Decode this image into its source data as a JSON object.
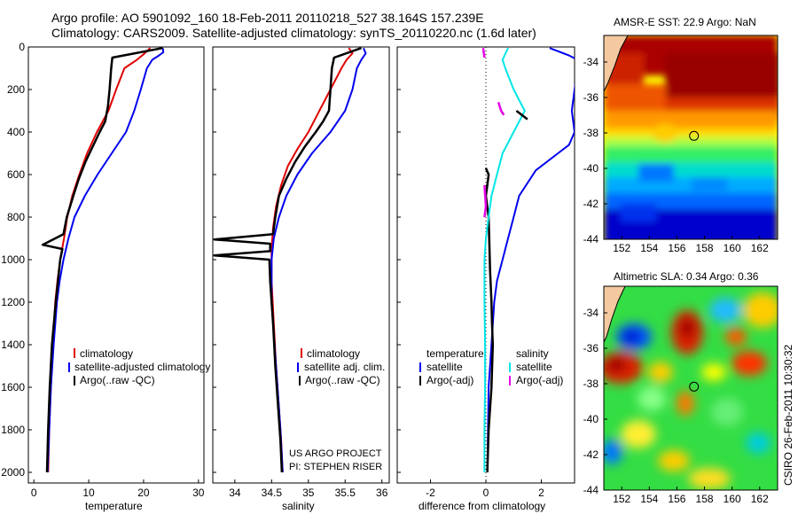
{
  "header": {
    "line1": "Argo profile: AO 5901092_160 18-Feb-2011 20110218_527 38.164S 157.239E",
    "line2": "Climatology: CARS2009. Satellite-adjusted climatology: synTS_20110220.nc (1.6d later)"
  },
  "colors": {
    "red": "#e00000",
    "blue": "#0000ee",
    "black": "#000000",
    "cyan": "#00e6e6",
    "magenta": "#e600e6"
  },
  "chart_data": [
    {
      "type": "line",
      "id": "temperature",
      "xlabel": "temperature",
      "xlim": [
        -1,
        31
      ],
      "ylim": [
        0,
        2050
      ],
      "xticks": [
        0,
        10,
        20,
        30
      ],
      "yticks": [
        0,
        200,
        400,
        600,
        800,
        1000,
        1200,
        1400,
        1600,
        1800,
        2000
      ],
      "ytick_labels": [
        "0",
        "200",
        "400",
        "600",
        "800",
        "1000",
        "1200",
        "1400",
        "1600",
        "1800",
        "2000"
      ],
      "legend": [
        "climatology",
        "satellite-adjusted climatology",
        "Argo(..raw -QC)"
      ],
      "series": [
        {
          "name": "climatology",
          "color": "red",
          "points": [
            [
              21.2,
              5
            ],
            [
              20.2,
              30
            ],
            [
              18.8,
              60
            ],
            [
              16.5,
              100
            ],
            [
              15.0,
              200
            ],
            [
              13.6,
              300
            ],
            [
              11.5,
              400
            ],
            [
              9.7,
              500
            ],
            [
              8.3,
              600
            ],
            [
              7.0,
              700
            ],
            [
              6.1,
              800
            ],
            [
              5.5,
              900
            ],
            [
              4.8,
              1000
            ],
            [
              4.3,
              1100
            ],
            [
              3.9,
              1200
            ],
            [
              3.5,
              1400
            ],
            [
              3.1,
              1600
            ],
            [
              2.8,
              1800
            ],
            [
              2.6,
              2000
            ]
          ]
        },
        {
          "name": "satellite-adjusted climatology",
          "color": "blue",
          "points": [
            [
              23.5,
              5
            ],
            [
              23.6,
              25
            ],
            [
              22.8,
              40
            ],
            [
              21.6,
              60
            ],
            [
              20.6,
              100
            ],
            [
              19.5,
              200
            ],
            [
              18.3,
              300
            ],
            [
              16.8,
              400
            ],
            [
              14.2,
              500
            ],
            [
              11.6,
              600
            ],
            [
              9.3,
              700
            ],
            [
              7.4,
              800
            ],
            [
              6.3,
              900
            ],
            [
              5.4,
              1000
            ],
            [
              4.7,
              1100
            ],
            [
              4.2,
              1200
            ],
            [
              3.6,
              1400
            ],
            [
              3.1,
              1600
            ],
            [
              2.8,
              1800
            ],
            [
              2.5,
              2000
            ]
          ]
        },
        {
          "name": "Argo",
          "color": "black",
          "points": [
            [
              23.5,
              5
            ],
            [
              14.3,
              50
            ],
            [
              14.1,
              100
            ],
            [
              13.8,
              200
            ],
            [
              13.5,
              280
            ],
            [
              13.0,
              350
            ],
            [
              12.0,
              400
            ],
            [
              10.5,
              480
            ],
            [
              9.4,
              540
            ],
            [
              8.2,
              620
            ],
            [
              7.2,
              700
            ],
            [
              6.0,
              800
            ],
            [
              5.4,
              880
            ],
            [
              1.6,
              930
            ],
            [
              5.2,
              950
            ],
            [
              4.8,
              1000
            ],
            [
              4.0,
              1200
            ],
            [
              3.3,
              1400
            ],
            [
              2.9,
              1600
            ],
            [
              2.6,
              1800
            ],
            [
              2.4,
              2000
            ]
          ]
        }
      ]
    },
    {
      "type": "line",
      "id": "salinity",
      "xlabel": "salinity",
      "xlim": [
        33.7,
        36.1
      ],
      "ylim": [
        0,
        2050
      ],
      "xticks": [
        34,
        34.5,
        35,
        35.5,
        36
      ],
      "xtick_labels": [
        "34",
        "34.5",
        "35",
        "35.5",
        "36"
      ],
      "legend": [
        "climatology",
        "satellite adj. clim.",
        "Argo(..raw -QC)"
      ],
      "notes": [
        "US ARGO PROJECT",
        "PI: STEPHEN RISER"
      ],
      "series": [
        {
          "name": "climatology",
          "color": "red",
          "points": [
            [
              35.55,
              5
            ],
            [
              35.6,
              30
            ],
            [
              35.52,
              60
            ],
            [
              35.45,
              100
            ],
            [
              35.3,
              200
            ],
            [
              35.15,
              300
            ],
            [
              35.0,
              400
            ],
            [
              34.85,
              480
            ],
            [
              34.72,
              560
            ],
            [
              34.63,
              650
            ],
            [
              34.56,
              750
            ],
            [
              34.52,
              850
            ],
            [
              34.5,
              950
            ],
            [
              34.5,
              1100
            ],
            [
              34.53,
              1300
            ],
            [
              34.56,
              1500
            ],
            [
              34.6,
              1700
            ],
            [
              34.63,
              1850
            ],
            [
              34.65,
              2000
            ]
          ]
        },
        {
          "name": "satellite adj. clim.",
          "color": "blue",
          "points": [
            [
              35.75,
              5
            ],
            [
              35.78,
              30
            ],
            [
              35.72,
              60
            ],
            [
              35.66,
              100
            ],
            [
              35.6,
              200
            ],
            [
              35.5,
              300
            ],
            [
              35.3,
              400
            ],
            [
              35.05,
              500
            ],
            [
              34.85,
              600
            ],
            [
              34.7,
              700
            ],
            [
              34.6,
              800
            ],
            [
              34.53,
              900
            ],
            [
              34.5,
              1000
            ],
            [
              34.5,
              1200
            ],
            [
              34.54,
              1400
            ],
            [
              34.58,
              1600
            ],
            [
              34.62,
              1800
            ],
            [
              34.65,
              2000
            ]
          ]
        },
        {
          "name": "Argo",
          "color": "black",
          "points": [
            [
              35.72,
              5
            ],
            [
              35.35,
              50
            ],
            [
              35.32,
              100
            ],
            [
              35.3,
              200
            ],
            [
              35.28,
              300
            ],
            [
              35.2,
              350
            ],
            [
              35.1,
              400
            ],
            [
              34.95,
              470
            ],
            [
              34.82,
              540
            ],
            [
              34.7,
              620
            ],
            [
              34.6,
              700
            ],
            [
              34.55,
              800
            ],
            [
              34.52,
              880
            ],
            [
              33.72,
              905
            ],
            [
              34.48,
              925
            ],
            [
              34.48,
              960
            ],
            [
              33.72,
              980
            ],
            [
              34.47,
              1000
            ],
            [
              34.48,
              1100
            ],
            [
              34.52,
              1300
            ],
            [
              34.55,
              1500
            ],
            [
              34.59,
              1700
            ],
            [
              34.62,
              1850
            ],
            [
              34.64,
              2000
            ]
          ]
        }
      ]
    },
    {
      "type": "line",
      "id": "difference",
      "xlabel": "difference from climatology",
      "xlim": [
        -3.2,
        3.2
      ],
      "ylim": [
        0,
        2050
      ],
      "xticks": [
        -2,
        0,
        2
      ],
      "legend_left": [
        "temperature",
        "satellite",
        "Argo(-adj)"
      ],
      "legend_right": [
        "salinity",
        "satellite",
        "Argo(-adj)"
      ],
      "series": [
        {
          "name": "temperature satellite",
          "color": "blue",
          "points": [
            [
              2.3,
              5
            ],
            [
              3.0,
              40
            ],
            [
              3.3,
              60
            ],
            [
              3.3,
              100
            ],
            [
              3.2,
              200
            ],
            [
              3.1,
              300
            ],
            [
              3.2,
              400
            ],
            [
              3.0,
              460
            ],
            [
              2.6,
              500
            ],
            [
              1.8,
              580
            ],
            [
              1.2,
              700
            ],
            [
              1.0,
              800
            ],
            [
              0.8,
              900
            ],
            [
              0.6,
              1000
            ],
            [
              0.4,
              1100
            ],
            [
              0.3,
              1200
            ],
            [
              0.2,
              1400
            ],
            [
              0.1,
              1600
            ],
            [
              0.05,
              2000
            ]
          ]
        },
        {
          "name": "temperature Argo",
          "color": "black",
          "points": [
            [
              0.0,
              570
            ],
            [
              0.1,
              600
            ],
            [
              0.05,
              650
            ],
            [
              0.0,
              700
            ],
            [
              0.1,
              800
            ],
            [
              0.15,
              1050
            ],
            [
              0.2,
              1200
            ],
            [
              0.22,
              1300
            ],
            [
              0.25,
              1400
            ],
            [
              0.2,
              1600
            ],
            [
              0.1,
              1800
            ],
            [
              0.05,
              2000
            ]
          ]
        },
        {
          "name": "salinity satellite",
          "color": "cyan",
          "points": [
            [
              0.8,
              5
            ],
            [
              0.6,
              60
            ],
            [
              0.7,
              100
            ],
            [
              1.0,
              200
            ],
            [
              1.4,
              300
            ],
            [
              1.0,
              400
            ],
            [
              0.6,
              500
            ],
            [
              0.4,
              600
            ],
            [
              0.2,
              700
            ],
            [
              0.1,
              800
            ],
            [
              0.0,
              900
            ],
            [
              -0.05,
              1000
            ],
            [
              -0.05,
              1200
            ],
            [
              -0.03,
              1400
            ],
            [
              -0.03,
              1600
            ],
            [
              -0.05,
              1800
            ],
            [
              -0.05,
              2000
            ]
          ]
        },
        {
          "name": "salinity Argo",
          "color": "magenta",
          "points": [
            [
              -0.05,
              650
            ],
            [
              0.0,
              750
            ],
            [
              -0.05,
              800
            ]
          ]
        },
        {
          "name": "salinity Argo upper",
          "color": "magenta",
          "points": [
            [
              -0.1,
              5
            ],
            [
              -0.05,
              50
            ]
          ]
        },
        {
          "name": "salinity Argo mid",
          "color": "magenta",
          "points": [
            [
              0.45,
              260
            ],
            [
              0.55,
              300
            ],
            [
              0.65,
              320
            ]
          ]
        }
      ],
      "extra_segments": [
        {
          "color": "black",
          "points": [
            [
              1.1,
              300
            ],
            [
              1.3,
              320
            ],
            [
              1.5,
              340
            ]
          ]
        }
      ]
    },
    {
      "type": "heatmap",
      "id": "sst_map",
      "title": "AMSR-E SST: 22.9 Argo: NaN",
      "xlim": [
        150.7,
        163.3
      ],
      "ylim": [
        -44,
        -32.5
      ],
      "xticks": [
        152,
        154,
        156,
        158,
        160,
        162
      ],
      "yticks": [
        -34,
        -36,
        -38,
        -40,
        -42,
        -44
      ],
      "argo_position": [
        157.239,
        -38.164
      ]
    },
    {
      "type": "heatmap",
      "id": "sla_map",
      "title": "Altimetric SLA: 0.34 Argo: 0.36",
      "xlim": [
        150.7,
        163.3
      ],
      "ylim": [
        -44,
        -32.5
      ],
      "xticks": [
        152,
        154,
        156,
        158,
        160,
        162
      ],
      "yticks": [
        -34,
        -36,
        -38,
        -40,
        -42,
        -44
      ],
      "argo_position": [
        157.239,
        -38.164
      ]
    }
  ],
  "footer": {
    "stamp": "CSIRO 26-Feb-2011 10:30:32"
  }
}
